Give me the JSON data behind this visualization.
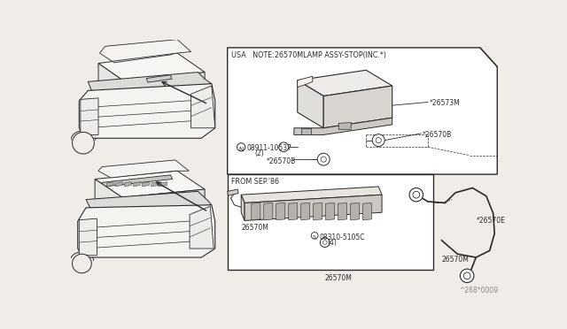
{
  "bg_color": "#f0ede8",
  "line_color": "#2a2a2a",
  "title_text": "USA   NOTE:26570MLAMP ASSY-STOP(INC.*)",
  "from_sep_text": "FROM SEP.'86",
  "lbl_26573M": "*26573M",
  "lbl_26570B_1": "*26570B",
  "lbl_26570B_2": "*26570B",
  "lbl_08911": "08911-10537",
  "lbl_08911_N": "N",
  "lbl_08911_qty": "(2)",
  "lbl_08310": "08310-5105C",
  "lbl_08310_S": "S",
  "lbl_08310_qty": "(4)",
  "lbl_26570M_1": "26570M",
  "lbl_26570E": "*26570E",
  "lbl_26570M_2": "26570M",
  "lbl_26570M_3": "26570M",
  "watermark": "^268*0009",
  "fig_width": 6.4,
  "fig_height": 3.72,
  "dpi": 100
}
